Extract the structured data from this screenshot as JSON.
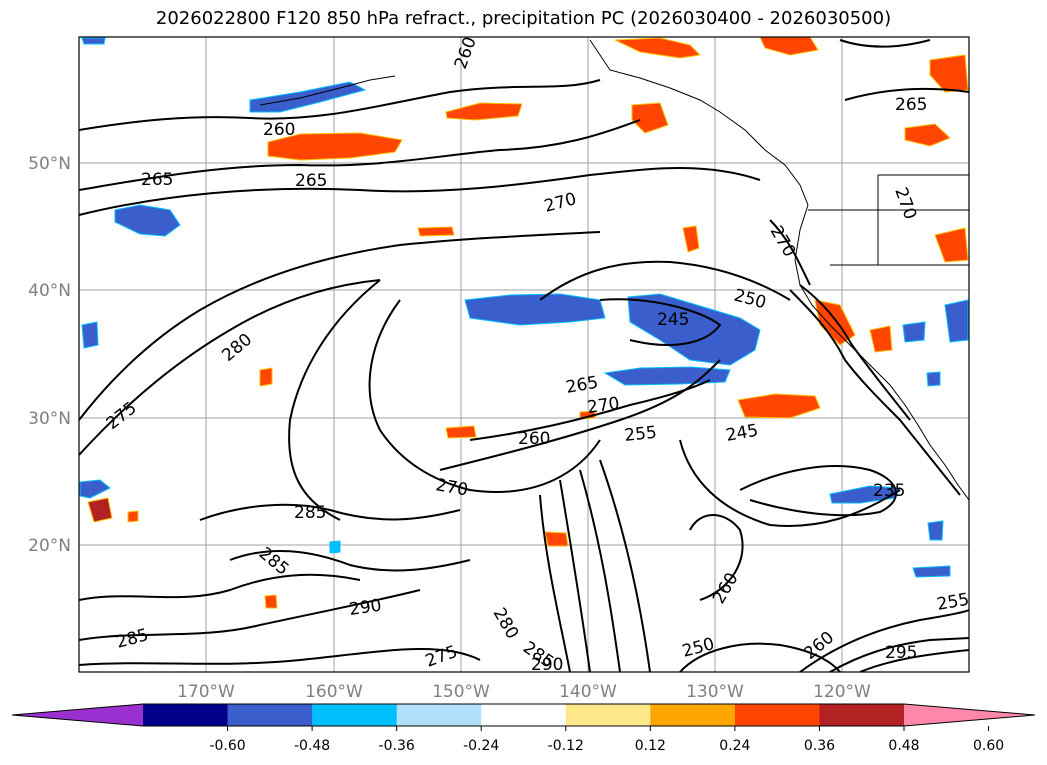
{
  "title": "2026022800 F120 850 hPa refract., precipitation PC (2026030400 - 2026030500)",
  "lat_labels": [
    "50°N",
    "40°N",
    "30°N",
    "20°N"
  ],
  "lon_labels": [
    "170°W",
    "160°W",
    "150°W",
    "140°W",
    "130°W",
    "120°W"
  ],
  "colorbar": {
    "colors": [
      "#9b30d0",
      "#00008b",
      "#3a5fcd",
      "#00bfff",
      "#b0e0fa",
      "#ffffff",
      "#ffe88c",
      "#ffa500",
      "#ff4500",
      "#b22222",
      "#ff88aa"
    ],
    "ticks": [
      "-0.60",
      "-0.48",
      "-0.36",
      "-0.24",
      "-0.12",
      "0.12",
      "0.24",
      "0.36",
      "0.48",
      "0.60"
    ]
  },
  "contour_labels": [
    "260",
    "265",
    "260",
    "265",
    "270",
    "265",
    "270",
    "280",
    "275",
    "250",
    "245",
    "265",
    "270",
    "260",
    "255",
    "245",
    "235",
    "285",
    "285",
    "290",
    "280",
    "285",
    "290",
    "275",
    "260",
    "250",
    "260",
    "255",
    "270",
    "295",
    "285",
    "270"
  ],
  "colors": {
    "grid": "#a0a0a0",
    "contour": "#000000"
  }
}
